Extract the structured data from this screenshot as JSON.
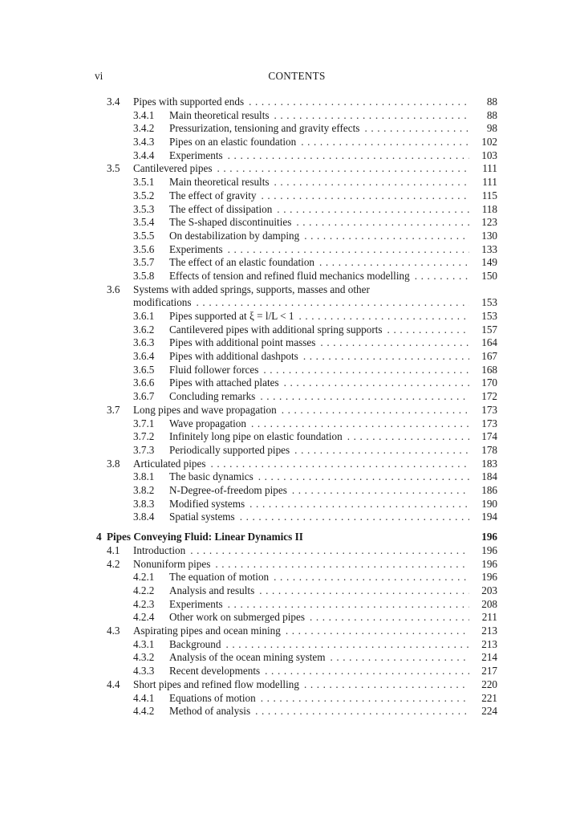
{
  "header": {
    "folio": "vi",
    "running_head": "CONTENTS"
  },
  "entries": [
    {
      "level": 1,
      "num": "3.4",
      "title": "Pipes with supported ends",
      "page": "88"
    },
    {
      "level": 2,
      "num": "3.4.1",
      "title": "Main theoretical results",
      "page": "88"
    },
    {
      "level": 2,
      "num": "3.4.2",
      "title": "Pressurization, tensioning and gravity effects",
      "page": "98"
    },
    {
      "level": 2,
      "num": "3.4.3",
      "title": "Pipes on an elastic foundation",
      "page": "102"
    },
    {
      "level": 2,
      "num": "3.4.4",
      "title": "Experiments",
      "page": "103"
    },
    {
      "level": 1,
      "num": "3.5",
      "title": "Cantilevered pipes",
      "page": "111"
    },
    {
      "level": 2,
      "num": "3.5.1",
      "title": "Main theoretical results",
      "page": "111"
    },
    {
      "level": 2,
      "num": "3.5.2",
      "title": "The effect of gravity",
      "page": "115"
    },
    {
      "level": 2,
      "num": "3.5.3",
      "title": "The effect of dissipation",
      "page": "118"
    },
    {
      "level": 2,
      "num": "3.5.4",
      "title": "The S-shaped discontinuities",
      "page": "123"
    },
    {
      "level": 2,
      "num": "3.5.5",
      "title": "On destabilization by damping",
      "page": "130"
    },
    {
      "level": 2,
      "num": "3.5.6",
      "title": "Experiments",
      "page": "133"
    },
    {
      "level": 2,
      "num": "3.5.7",
      "title": "The effect of an elastic foundation",
      "page": "149"
    },
    {
      "level": 2,
      "num": "3.5.8",
      "title": "Effects of tension and refined fluid mechanics modelling",
      "page": "150"
    },
    {
      "level": 1,
      "num": "3.6",
      "title": "Systems with added springs, supports, masses and other",
      "page": "",
      "noleader": true
    },
    {
      "level": "c",
      "num": "",
      "title": "modifications",
      "page": "153"
    },
    {
      "level": 2,
      "num": "3.6.1",
      "title": "Pipes supported at ξ = l/L < 1",
      "page": "153"
    },
    {
      "level": 2,
      "num": "3.6.2",
      "title": "Cantilevered pipes with additional spring supports",
      "page": "157"
    },
    {
      "level": 2,
      "num": "3.6.3",
      "title": "Pipes with additional point masses",
      "page": "164"
    },
    {
      "level": 2,
      "num": "3.6.4",
      "title": "Pipes with additional dashpots",
      "page": "167"
    },
    {
      "level": 2,
      "num": "3.6.5",
      "title": "Fluid follower forces",
      "page": "168"
    },
    {
      "level": 2,
      "num": "3.6.6",
      "title": "Pipes with attached plates",
      "page": "170"
    },
    {
      "level": 2,
      "num": "3.6.7",
      "title": "Concluding remarks",
      "page": "172"
    },
    {
      "level": 1,
      "num": "3.7",
      "title": "Long pipes and wave propagation",
      "page": "173"
    },
    {
      "level": 2,
      "num": "3.7.1",
      "title": "Wave propagation",
      "page": "173"
    },
    {
      "level": 2,
      "num": "3.7.2",
      "title": "Infinitely long pipe on elastic foundation",
      "page": "174"
    },
    {
      "level": 2,
      "num": "3.7.3",
      "title": "Periodically supported pipes",
      "page": "178"
    },
    {
      "level": 1,
      "num": "3.8",
      "title": "Articulated pipes",
      "page": "183"
    },
    {
      "level": 2,
      "num": "3.8.1",
      "title": "The basic dynamics",
      "page": "184"
    },
    {
      "level": 2,
      "num": "3.8.2",
      "title": "N-Degree-of-freedom pipes",
      "page": "186"
    },
    {
      "level": 2,
      "num": "3.8.3",
      "title": "Modified systems",
      "page": "190"
    },
    {
      "level": 2,
      "num": "3.8.4",
      "title": "Spatial systems",
      "page": "194"
    },
    {
      "level": 0,
      "num": "4",
      "title": "Pipes Conveying Fluid: Linear Dynamics II",
      "page": "196",
      "noleader": true
    },
    {
      "level": 1,
      "num": "4.1",
      "title": "Introduction",
      "page": "196"
    },
    {
      "level": 1,
      "num": "4.2",
      "title": "Nonuniform pipes",
      "page": "196"
    },
    {
      "level": 2,
      "num": "4.2.1",
      "title": "The equation of motion",
      "page": "196"
    },
    {
      "level": 2,
      "num": "4.2.2",
      "title": "Analysis and results",
      "page": "203"
    },
    {
      "level": 2,
      "num": "4.2.3",
      "title": "Experiments",
      "page": "208"
    },
    {
      "level": 2,
      "num": "4.2.4",
      "title": "Other work on submerged pipes",
      "page": "211"
    },
    {
      "level": 1,
      "num": "4.3",
      "title": "Aspirating pipes and ocean mining",
      "page": "213"
    },
    {
      "level": 2,
      "num": "4.3.1",
      "title": "Background",
      "page": "213"
    },
    {
      "level": 2,
      "num": "4.3.2",
      "title": "Analysis of the ocean mining system",
      "page": "214"
    },
    {
      "level": 2,
      "num": "4.3.3",
      "title": "Recent developments",
      "page": "217"
    },
    {
      "level": 1,
      "num": "4.4",
      "title": "Short pipes and refined flow modelling",
      "page": "220"
    },
    {
      "level": 2,
      "num": "4.4.1",
      "title": "Equations of motion",
      "page": "221"
    },
    {
      "level": 2,
      "num": "4.4.2",
      "title": "Method of analysis",
      "page": "224"
    }
  ]
}
